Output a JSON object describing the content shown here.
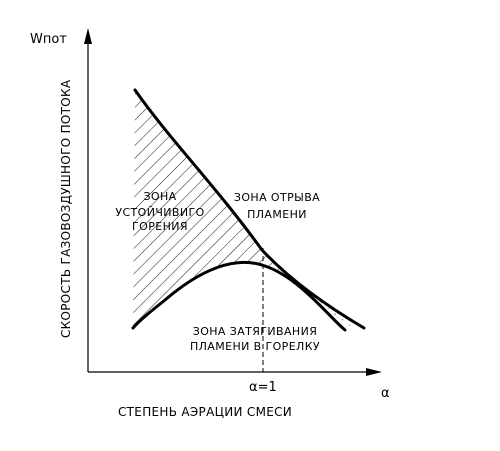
{
  "diagram": {
    "y_axis_symbol": "Wпот",
    "x_axis_symbol": "α",
    "y_axis_label": "СКОРОСТЬ ГАЗОВОЗДУШНОГО ПОТОКА",
    "x_axis_label": "СТЕПЕНЬ АЭРАЦИИ СМЕСИ",
    "alpha_marker": "α=1",
    "zones": {
      "stable": [
        "ЗОНА",
        "УСТОЙЧИВИГО",
        "ГОРЕНИЯ"
      ],
      "blowoff": [
        "ЗОНА ОТРЫВА",
        "ПЛАМЕНИ"
      ],
      "flashback": [
        "ЗОНА ЗАТЯГИВАНИЯ",
        "ПЛАМЕНИ В ГОРЕЛКУ"
      ]
    }
  }
}
